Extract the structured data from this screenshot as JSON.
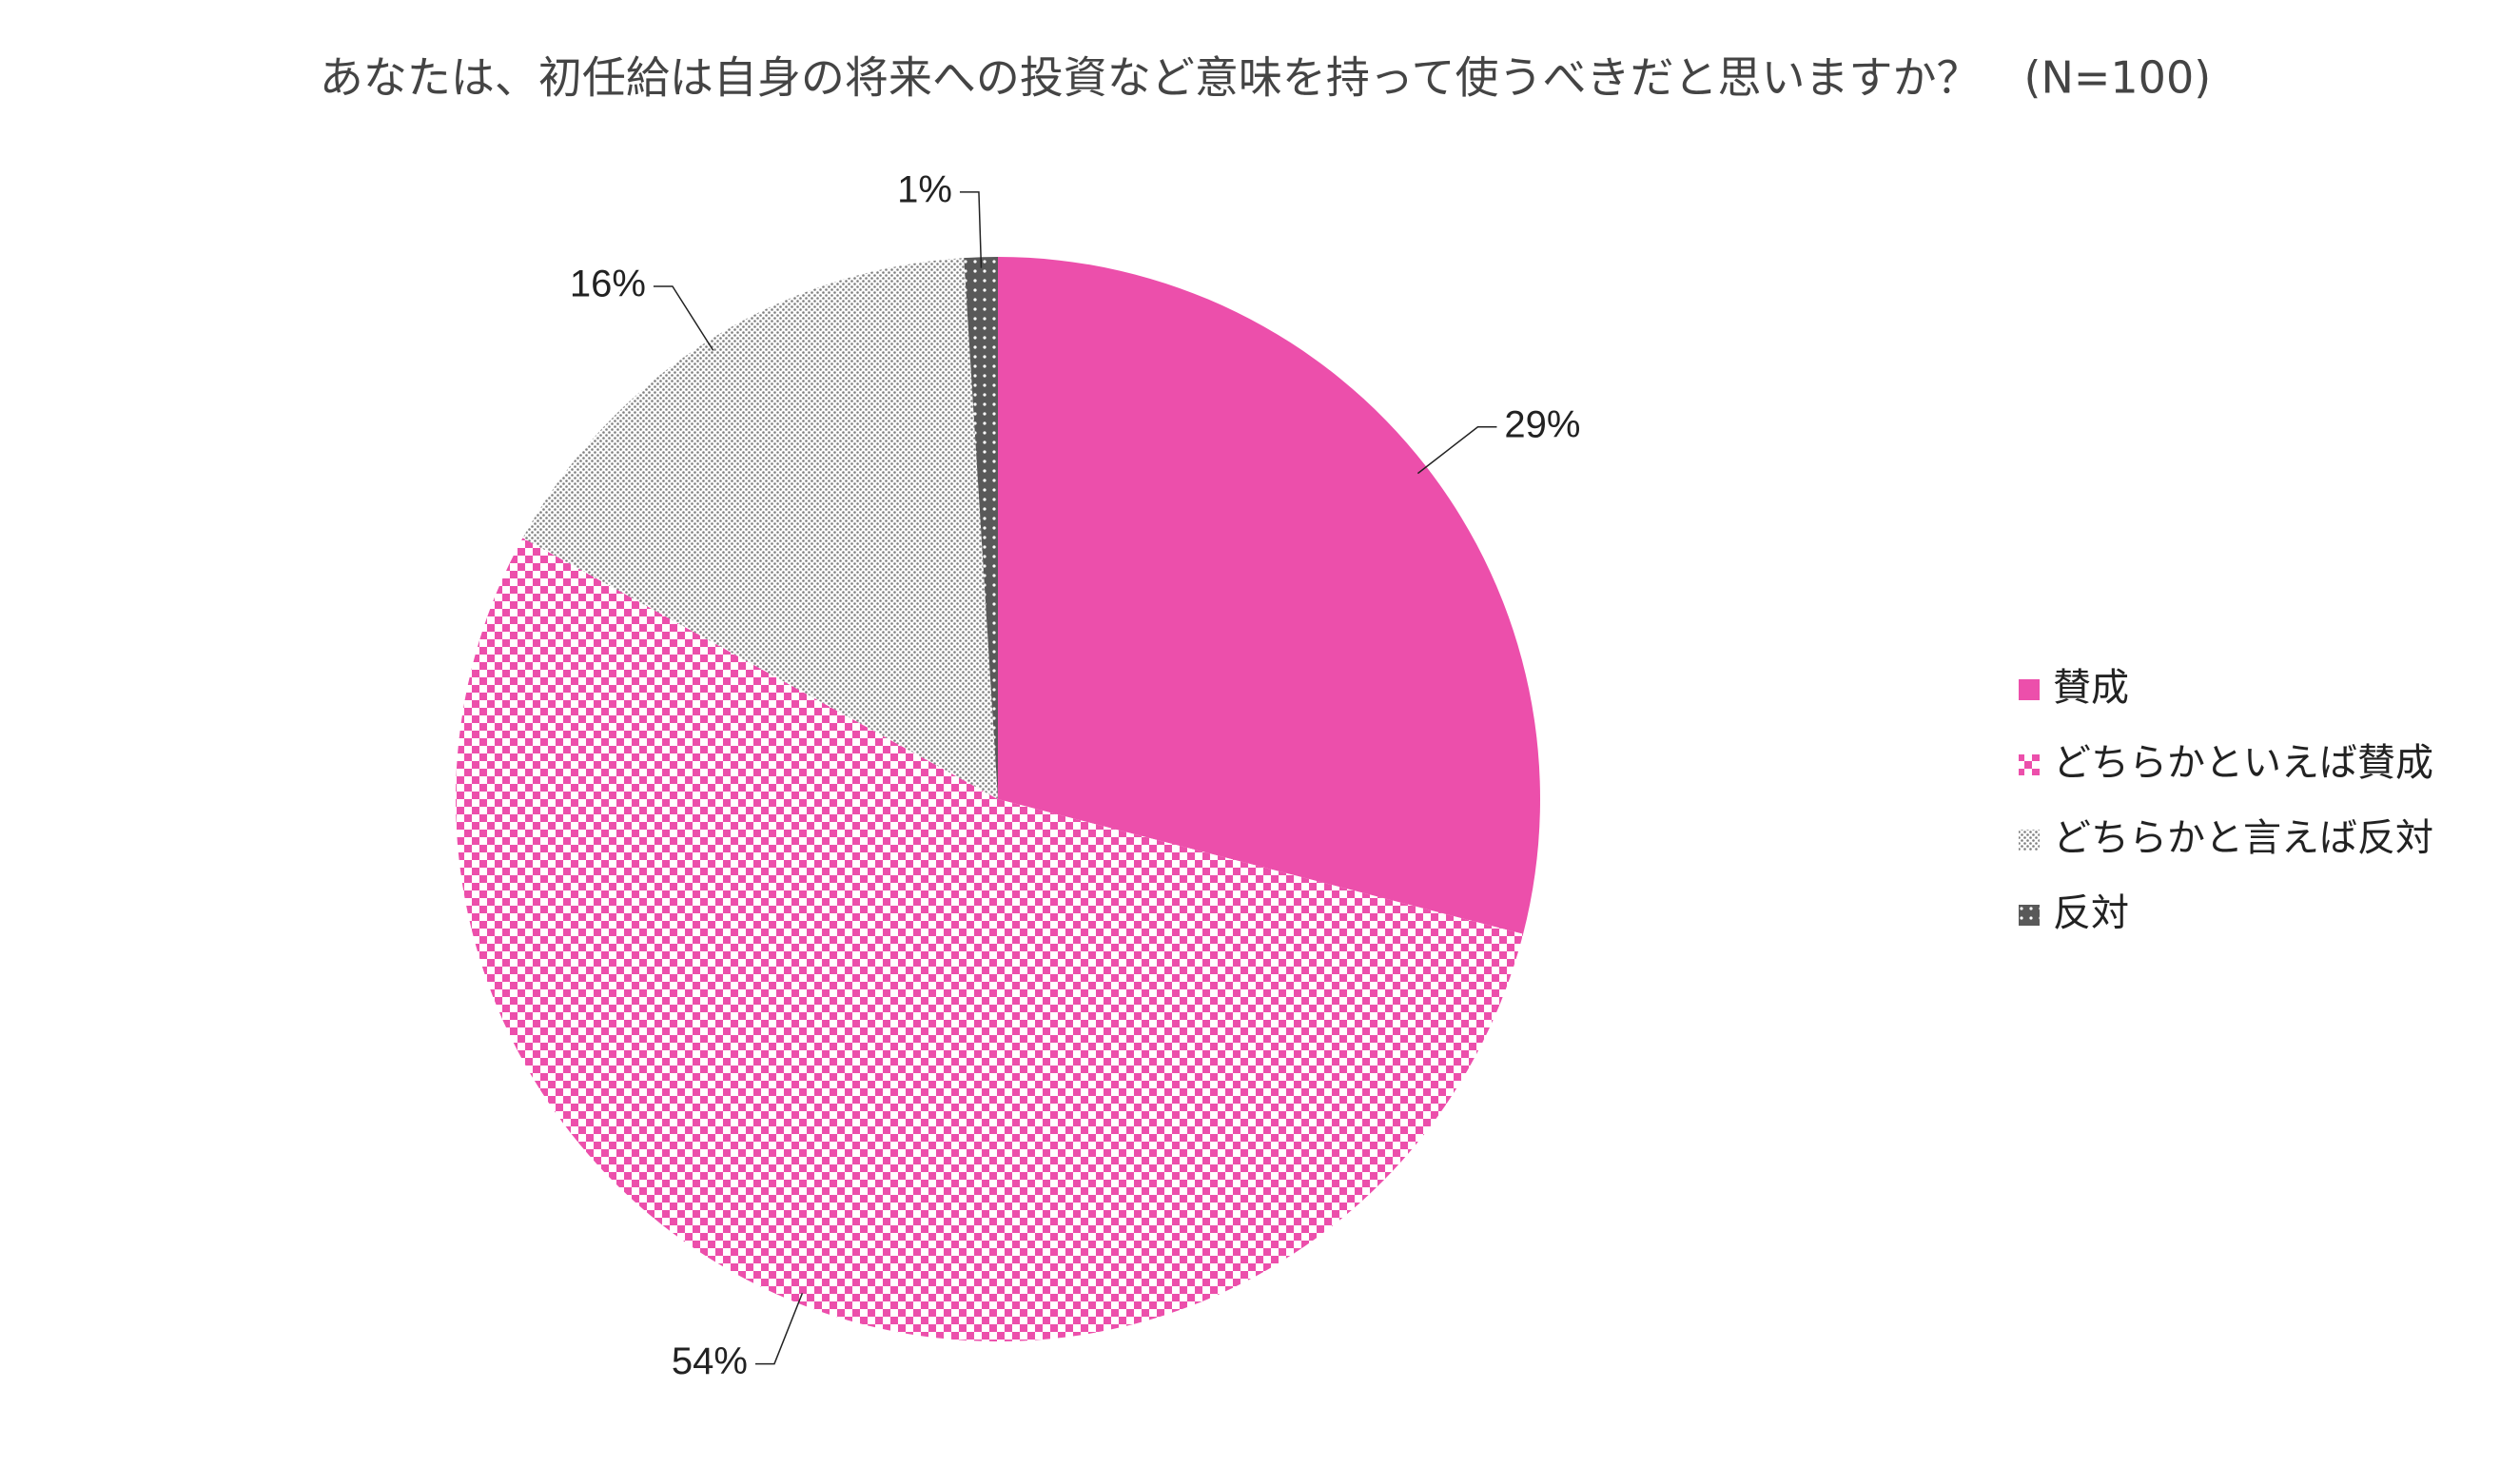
{
  "chart_data": {
    "type": "pie",
    "title": "あなたは、初任給は自身の将来への投資など意味を持って使うべきだと思いますか？　(N=100)",
    "categories": [
      "賛成",
      "どちらかといえば賛成",
      "どちらかと言えば反対",
      "反対"
    ],
    "values": [
      29,
      54,
      16,
      1
    ],
    "value_labels": [
      "29%",
      "54%",
      "16%",
      "1%"
    ],
    "colors": [
      "#ec4fab",
      "#ec4fab",
      "#7f7f7f",
      "#595959"
    ],
    "legend": "right"
  }
}
